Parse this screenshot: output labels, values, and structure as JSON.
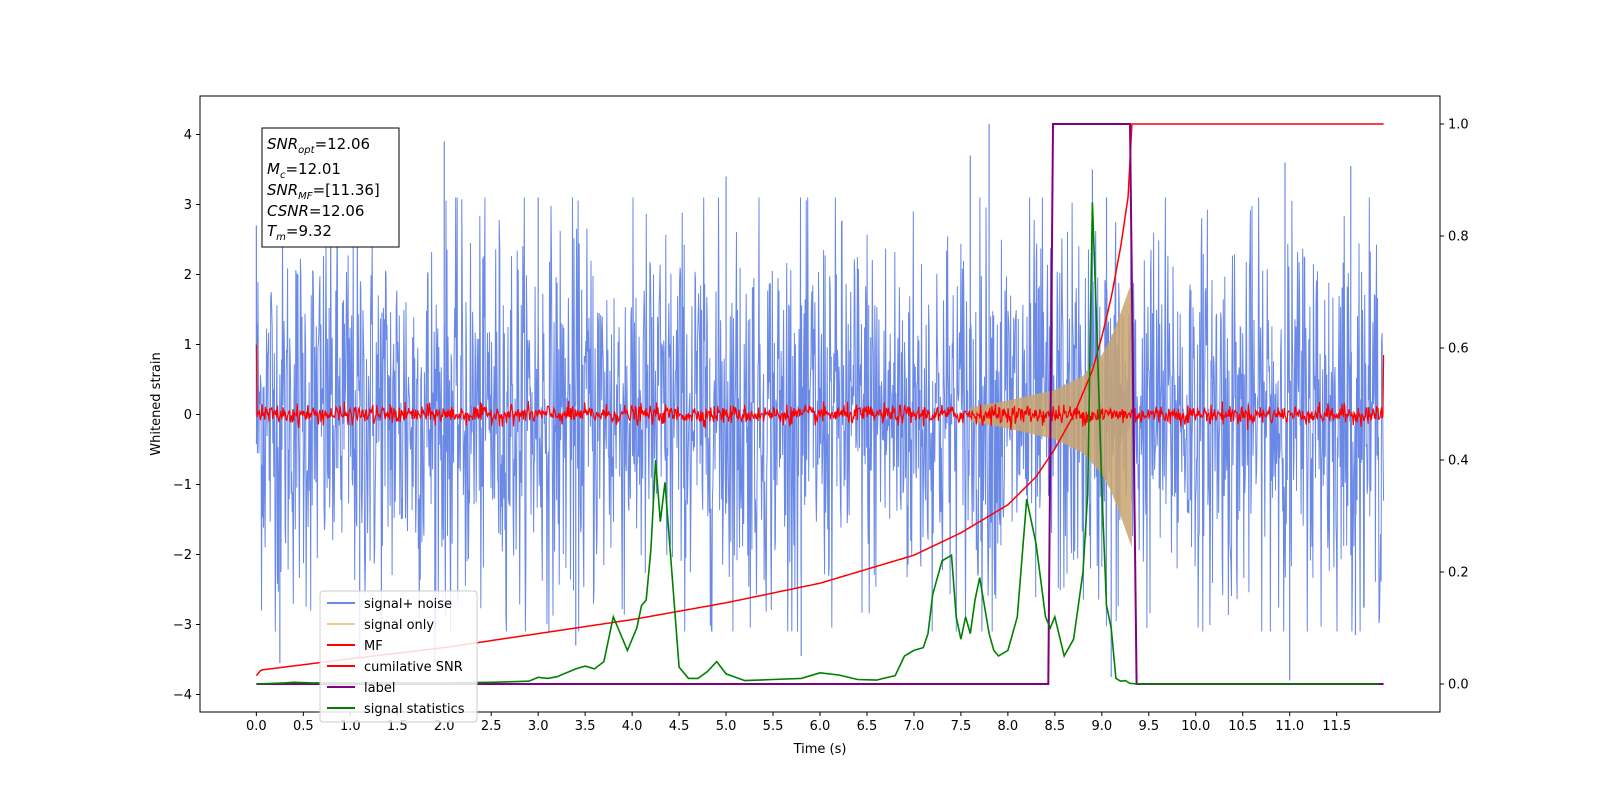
{
  "chart_data": {
    "type": "line",
    "xlabel": "Time (s)",
    "ylabel": "Whitened strain",
    "xlim": [
      -0.6,
      12.6
    ],
    "ylim_left": [
      -4.25,
      4.55
    ],
    "ylim_right": [
      -0.05,
      1.05
    ],
    "xticks": [
      0.0,
      0.5,
      1.0,
      1.5,
      2.0,
      2.5,
      3.0,
      3.5,
      4.0,
      4.5,
      5.0,
      5.5,
      6.0,
      6.5,
      7.0,
      7.5,
      8.0,
      8.5,
      9.0,
      9.5,
      10.0,
      10.5,
      11.0,
      11.5
    ],
    "xtick_labels": [
      "0.0",
      "0.5",
      "1.0",
      "1.5",
      "2.0",
      "2.5",
      "3.0",
      "3.5",
      "4.0",
      "4.5",
      "5.0",
      "5.5",
      "6.0",
      "6.5",
      "7.0",
      "7.5",
      "8.0",
      "8.5",
      "9.0",
      "9.5",
      "10.0",
      "10.5",
      "11.0",
      "11.5"
    ],
    "yticks_left": [
      -4,
      -3,
      -2,
      -1,
      0,
      1,
      2,
      3,
      4
    ],
    "ytick_labels_left": [
      "−4",
      "−3",
      "−2",
      "−1",
      "0",
      "1",
      "2",
      "3",
      "4"
    ],
    "yticks_right": [
      0.0,
      0.2,
      0.4,
      0.6,
      0.8,
      1.0
    ],
    "ytick_labels_right": [
      "0.0",
      "0.2",
      "0.4",
      "0.6",
      "0.8",
      "1.0"
    ],
    "legend_location": "lower-left",
    "grid": false,
    "colors": {
      "signal_noise": "#6a89e6",
      "signal_only": "#c9a46e",
      "mf": "#ff0000",
      "cumulative_snr": "#ff0000",
      "label": "#800080",
      "signal_statistics": "#008000"
    },
    "legend": [
      "signal+ noise",
      "signal only",
      "MF",
      "cumilative SNR",
      "label",
      "signal statistics"
    ],
    "annotation": {
      "snr_opt": "=12.06",
      "mc": "=12.01",
      "snr_mf": "=[11.36]",
      "csnr": "=12.06",
      "tm": "=9.32"
    },
    "series": [
      {
        "name": "signal+ noise",
        "axis": "left",
        "kind": "noise-band",
        "x_range": [
          0.0,
          12.0
        ],
        "typical_amplitude": 1.6,
        "peaks_high": [
          [
            0.0,
            2.7
          ],
          [
            2.0,
            3.9
          ],
          [
            3.0,
            3.1
          ],
          [
            5.0,
            3.4
          ],
          [
            7.6,
            3.7
          ],
          [
            7.8,
            4.15
          ],
          [
            8.9,
            3.5
          ],
          [
            9.05,
            3.1
          ],
          [
            10.95,
            3.6
          ],
          [
            11.65,
            3.55
          ]
        ],
        "peaks_low": [
          [
            0.25,
            -3.55
          ],
          [
            1.1,
            -3.5
          ],
          [
            1.9,
            -3.55
          ],
          [
            3.4,
            -3.3
          ],
          [
            5.8,
            -3.45
          ],
          [
            9.1,
            -3.75
          ],
          [
            11.0,
            -3.8
          ],
          [
            11.7,
            -3.15
          ]
        ]
      },
      {
        "name": "signal only",
        "axis": "left",
        "kind": "chirp-envelope",
        "x": [
          7.6,
          8.0,
          8.5,
          8.8,
          9.0,
          9.1,
          9.2,
          9.28,
          9.32
        ],
        "amplitude": [
          0.1,
          0.2,
          0.35,
          0.55,
          0.85,
          1.1,
          1.45,
          1.75,
          1.9
        ]
      },
      {
        "name": "MF",
        "axis": "left",
        "kind": "noise-line",
        "x_range": [
          0.0,
          12.0
        ],
        "noise_amplitude": 0.12,
        "edge_values": [
          [
            0.0,
            1.0
          ],
          [
            12.0,
            0.85
          ]
        ]
      },
      {
        "name": "cumilative SNR",
        "axis": "right",
        "x": [
          0.0,
          0.05,
          1.0,
          2.0,
          3.0,
          4.0,
          5.0,
          6.0,
          7.0,
          7.5,
          8.0,
          8.3,
          8.5,
          8.7,
          8.9,
          9.0,
          9.1,
          9.2,
          9.28,
          9.32,
          12.0
        ],
        "y": [
          0.015,
          0.025,
          0.045,
          0.065,
          0.09,
          0.115,
          0.145,
          0.18,
          0.23,
          0.27,
          0.32,
          0.37,
          0.42,
          0.48,
          0.56,
          0.62,
          0.69,
          0.78,
          0.87,
          1.0,
          1.0
        ]
      },
      {
        "name": "label",
        "axis": "right",
        "x": [
          0.0,
          8.43,
          8.48,
          9.3,
          9.37,
          12.0
        ],
        "y": [
          0.0,
          0.0,
          1.0,
          1.0,
          0.0,
          0.0
        ]
      },
      {
        "name": "signal statistics",
        "axis": "right",
        "x": [
          0.0,
          0.3,
          0.4,
          0.6,
          1.0,
          1.5,
          2.0,
          2.5,
          2.9,
          3.0,
          3.1,
          3.2,
          3.4,
          3.5,
          3.6,
          3.7,
          3.8,
          3.85,
          3.95,
          4.05,
          4.1,
          4.15,
          4.2,
          4.25,
          4.3,
          4.35,
          4.4,
          4.45,
          4.5,
          4.6,
          4.7,
          4.8,
          4.9,
          5.0,
          5.2,
          5.5,
          5.8,
          6.0,
          6.2,
          6.4,
          6.6,
          6.8,
          6.9,
          7.0,
          7.1,
          7.15,
          7.2,
          7.3,
          7.4,
          7.45,
          7.5,
          7.55,
          7.6,
          7.65,
          7.7,
          7.8,
          7.85,
          7.9,
          8.0,
          8.1,
          8.2,
          8.3,
          8.4,
          8.45,
          8.5,
          8.6,
          8.7,
          8.8,
          8.85,
          8.9,
          8.95,
          9.0,
          9.05,
          9.1,
          9.15,
          9.2,
          9.25,
          9.3,
          9.4,
          9.6,
          9.8,
          10.0,
          11.0,
          11.0,
          11.5,
          11.95
        ],
        "y": [
          0.0,
          0.002,
          0.003,
          0.002,
          0.002,
          0.002,
          0.002,
          0.003,
          0.005,
          0.012,
          0.01,
          0.013,
          0.027,
          0.032,
          0.027,
          0.04,
          0.12,
          0.1,
          0.06,
          0.1,
          0.14,
          0.15,
          0.24,
          0.4,
          0.29,
          0.36,
          0.25,
          0.14,
          0.03,
          0.01,
          0.01,
          0.022,
          0.04,
          0.018,
          0.006,
          0.008,
          0.01,
          0.02,
          0.016,
          0.008,
          0.007,
          0.015,
          0.05,
          0.06,
          0.065,
          0.09,
          0.16,
          0.22,
          0.23,
          0.12,
          0.08,
          0.12,
          0.09,
          0.15,
          0.19,
          0.09,
          0.06,
          0.05,
          0.06,
          0.12,
          0.33,
          0.25,
          0.12,
          0.1,
          0.12,
          0.05,
          0.08,
          0.2,
          0.34,
          0.86,
          0.62,
          0.35,
          0.14,
          0.1,
          0.01,
          0.005,
          0.006,
          0.001,
          0.0,
          0.0,
          0.0,
          0.0,
          0.0,
          0.0,
          0.0,
          0.0
        ]
      }
    ]
  }
}
